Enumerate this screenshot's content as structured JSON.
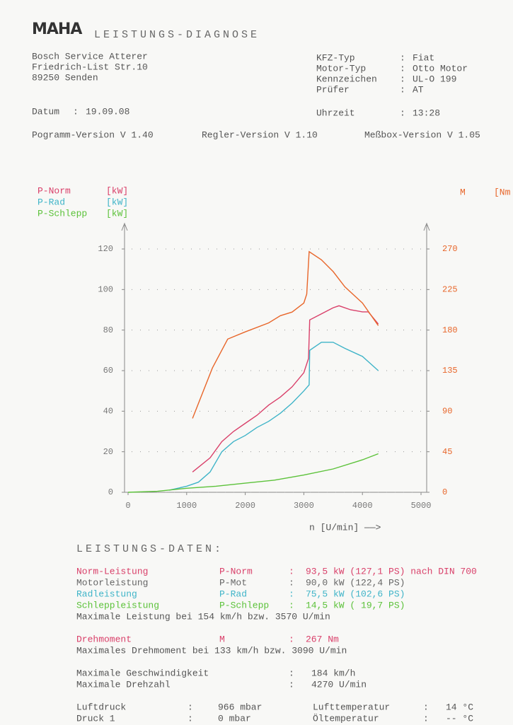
{
  "header": {
    "logo": "MAHA",
    "title": "LEISTUNGS-DIAGNOSE"
  },
  "address": [
    "Bosch Service Atterer",
    "Friedrich-List Str.10",
    "89250 Senden"
  ],
  "vehicle": [
    [
      "KFZ-Typ",
      ":",
      "Fiat"
    ],
    [
      "Motor-Typ",
      ":",
      "Otto Motor"
    ],
    [
      "Kennzeichen",
      ":",
      "UL-O 199"
    ],
    [
      "Prüfer",
      ":",
      "AT"
    ]
  ],
  "date": [
    "Datum",
    ":",
    "19.09.08"
  ],
  "time": [
    "Uhrzeit",
    ":",
    "13:28"
  ],
  "versions": [
    "Pogramm-Version V 1.40",
    "Regler-Version V 1.10",
    "Meßbox-Version V 1.05"
  ],
  "chart_data": {
    "type": "line",
    "x_label": "n [U/min] ——>",
    "xlim": [
      0,
      5000
    ],
    "xticks": [
      0,
      1000,
      2000,
      3000,
      4000,
      5000
    ],
    "ylim": [
      0,
      120
    ],
    "yticks": [
      0,
      20,
      40,
      60,
      80,
      100,
      120
    ],
    "y2lim": [
      0,
      270
    ],
    "y2ticks": [
      0,
      45,
      90,
      135,
      180,
      225,
      270
    ],
    "grid": true,
    "series": [
      {
        "name": "P-Norm",
        "unit": "[kW]",
        "color": "#d9406a",
        "x": [
          1100,
          1400,
          1600,
          1800,
          2000,
          2200,
          2400,
          2600,
          2800,
          3000,
          3080,
          3100,
          3300,
          3500,
          3600,
          3800,
          4000,
          4100,
          4270
        ],
        "values": [
          10,
          17,
          25,
          30,
          34,
          38,
          43,
          47,
          52,
          59,
          66,
          85,
          88,
          91,
          92,
          90,
          89,
          89,
          83
        ]
      },
      {
        "name": "P-Rad",
        "unit": "[kW]",
        "color": "#3fb4c8",
        "x": [
          700,
          1000,
          1200,
          1400,
          1600,
          1800,
          2000,
          2200,
          2400,
          2600,
          2800,
          3000,
          3090,
          3100,
          3300,
          3500,
          3700,
          4000,
          4270
        ],
        "values": [
          1,
          3,
          5,
          10,
          20,
          25,
          28,
          32,
          35,
          39,
          44,
          50,
          53,
          70,
          74,
          74,
          71,
          67,
          60
        ]
      },
      {
        "name": "P-Schlepp",
        "unit": "[kW]",
        "color": "#5cc23a",
        "x": [
          0,
          500,
          1000,
          1500,
          2000,
          2500,
          3000,
          3500,
          4000,
          4270
        ],
        "values": [
          0,
          0.5,
          2,
          3,
          4.5,
          6,
          8.5,
          11.5,
          16,
          19
        ]
      },
      {
        "name": "M",
        "unit": "[Nm",
        "color": "#e8662a",
        "axis": "y2",
        "x": [
          1100,
          1440,
          1700,
          2000,
          2400,
          2600,
          2800,
          3000,
          3050,
          3090,
          3300,
          3500,
          3700,
          4000,
          4270
        ],
        "values": [
          82,
          138,
          170,
          178,
          188,
          196,
          200,
          210,
          220,
          267,
          258,
          245,
          228,
          210,
          185
        ]
      }
    ]
  },
  "results": {
    "title": "LEISTUNGS-DATEN:",
    "power": [
      [
        "Norm-Leistung",
        "P-Norm",
        ":",
        "93,5 kW (127,1 PS) nach DIN 700"
      ],
      [
        "Motorleistung",
        "P-Mot",
        ":",
        "90,0 kW (122,4 PS)"
      ],
      [
        "Radleistung",
        "P-Rad",
        ":",
        "75,5 kW (102,6 PS)"
      ],
      [
        "Schleppleistung",
        "P-Schlepp",
        ":",
        "14,5 kW ( 19,7 PS)"
      ]
    ],
    "power_note": "Maximale Leistung bei 154 km/h bzw.  3570 U/min",
    "torque": [
      "Drehmoment",
      "M",
      ":",
      "267 Nm"
    ],
    "torque_note": "Maximales Drehmoment bei 133 km/h bzw.  3090 U/min",
    "limits": [
      [
        "Maximale Geschwindigkeit",
        ":",
        "184 km/h"
      ],
      [
        "Maximale Drehzahl",
        ":",
        "4270 U/min"
      ]
    ],
    "ambient": [
      [
        "Luftdruck",
        ":",
        "966 mbar",
        "Lufttemperatur",
        ":",
        "14 °C"
      ],
      [
        "Druck 1",
        ":",
        "0 mbar",
        "Öltemperatur",
        ":",
        "-- °C"
      ]
    ]
  }
}
